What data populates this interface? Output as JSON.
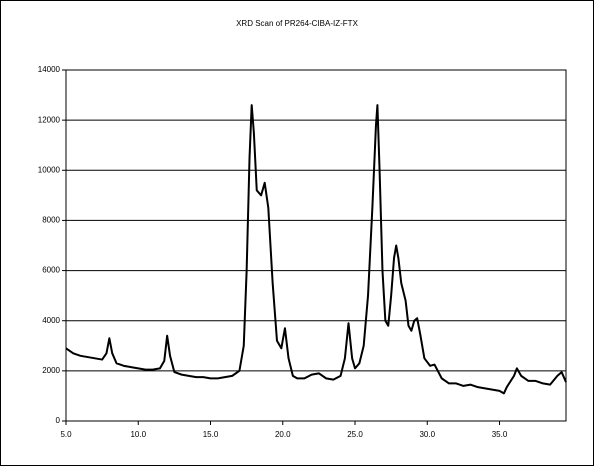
{
  "chart_data": {
    "type": "line",
    "title": "XRD Scan of PR264-CIBA-IZ-FTX",
    "color": "#000000",
    "grid": true,
    "xlim": [
      5,
      39.6
    ],
    "ylim": [
      0,
      14000
    ],
    "xticks": [
      {
        "value": 5,
        "label": "5.0"
      },
      {
        "value": 10,
        "label": "10.0"
      },
      {
        "value": 15,
        "label": "15.0"
      },
      {
        "value": 20,
        "label": "20.0"
      },
      {
        "value": 25,
        "label": "25.0"
      },
      {
        "value": 30,
        "label": "30.0"
      },
      {
        "value": 35,
        "label": "35.0"
      }
    ],
    "yticks": [
      0,
      2000,
      4000,
      6000,
      8000,
      10000,
      12000,
      14000
    ],
    "x": [
      5,
      5.5,
      6,
      6.5,
      7,
      7.5,
      7.8,
      8.0,
      8.2,
      8.5,
      9,
      9.5,
      10,
      10.5,
      11,
      11.5,
      11.8,
      12.0,
      12.2,
      12.5,
      13,
      13.5,
      14,
      14.5,
      15,
      15.5,
      16,
      16.5,
      17,
      17.3,
      17.5,
      17.7,
      17.85,
      18.0,
      18.2,
      18.5,
      18.75,
      19.0,
      19.3,
      19.6,
      19.9,
      20.15,
      20.4,
      20.7,
      21,
      21.5,
      22,
      22.5,
      23,
      23.5,
      24,
      24.3,
      24.55,
      24.8,
      25.0,
      25.3,
      25.6,
      25.9,
      26.2,
      26.45,
      26.55,
      26.7,
      26.9,
      27.1,
      27.3,
      27.5,
      27.7,
      27.85,
      28.0,
      28.2,
      28.5,
      28.7,
      28.9,
      29.1,
      29.3,
      29.5,
      29.8,
      30.2,
      30.5,
      31,
      31.5,
      32,
      32.5,
      33,
      33.5,
      34,
      34.5,
      35,
      35.3,
      35.5,
      36,
      36.2,
      36.5,
      37,
      37.5,
      38,
      38.5,
      39,
      39.3,
      39.6
    ],
    "values": [
      2900,
      2700,
      2600,
      2550,
      2500,
      2450,
      2700,
      3300,
      2700,
      2300,
      2200,
      2150,
      2100,
      2050,
      2050,
      2100,
      2400,
      3400,
      2600,
      1950,
      1850,
      1800,
      1750,
      1750,
      1700,
      1700,
      1750,
      1800,
      2000,
      3000,
      6000,
      10500,
      12600,
      11500,
      9200,
      9000,
      9500,
      8500,
      5500,
      3200,
      2900,
      3700,
      2500,
      1800,
      1700,
      1700,
      1850,
      1900,
      1700,
      1650,
      1800,
      2500,
      3900,
      2500,
      2100,
      2300,
      3000,
      5000,
      8500,
      11800,
      12600,
      10000,
      6000,
      4000,
      3800,
      5000,
      6500,
      7000,
      6500,
      5500,
      4800,
      3800,
      3600,
      4000,
      4100,
      3500,
      2500,
      2200,
      2250,
      1700,
      1500,
      1500,
      1400,
      1450,
      1350,
      1300,
      1250,
      1200,
      1100,
      1350,
      1800,
      2100,
      1800,
      1600,
      1600,
      1500,
      1450,
      1800,
      1950,
      1550
    ]
  }
}
